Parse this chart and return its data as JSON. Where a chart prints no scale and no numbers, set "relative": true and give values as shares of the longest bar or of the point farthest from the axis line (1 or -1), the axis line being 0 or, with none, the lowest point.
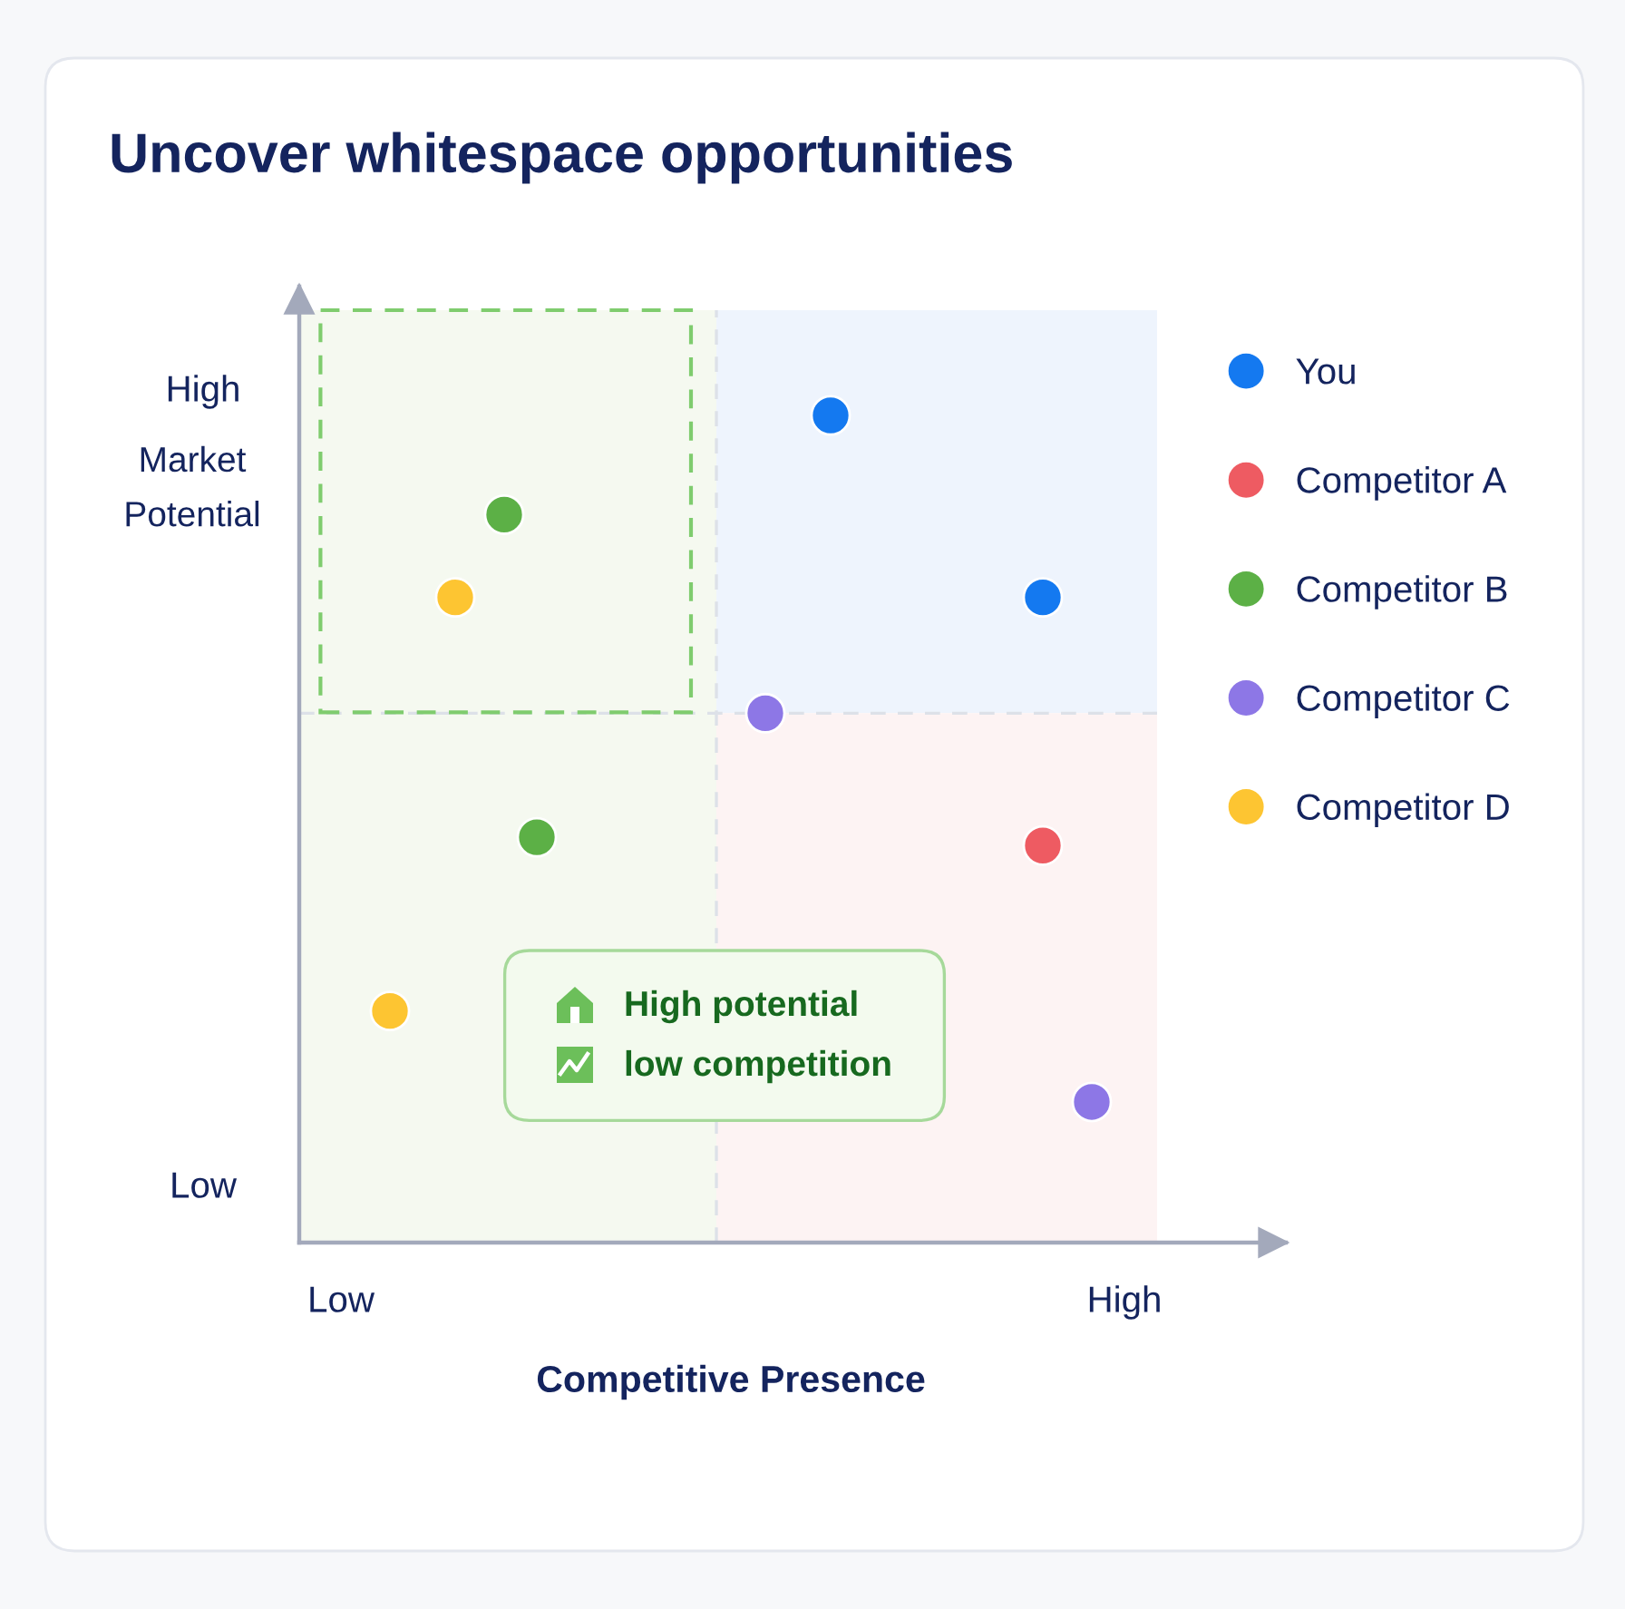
{
  "chart_data": {
    "type": "scatter",
    "relative": true,
    "title": "Uncover whitespace opportunities",
    "xlabel": "Competitive Presence",
    "ylabel": "Market Potential",
    "categories": [
      "Low",
      null,
      null,
      null,
      null,
      null,
      null,
      null,
      null,
      null,
      null,
      null,
      null,
      null,
      null,
      null,
      null,
      null,
      null,
      null,
      null,
      null,
      null,
      null,
      null,
      null,
      null,
      null,
      null,
      null,
      null,
      null,
      null,
      null,
      null,
      null,
      null,
      null,
      null,
      null,
      null,
      null,
      null,
      null,
      null,
      null,
      null,
      null,
      "High"
    ],
    "series": [
      {
        "name": "You",
        "color": "#1479f0",
        "values": [
          null,
          null,
          null,
          null,
          null,
          null,
          null,
          null,
          null,
          null,
          null,
          null,
          null,
          null,
          null,
          null,
          null,
          null,
          null,
          null,
          null,
          null,
          null,
          null,
          null,
          null,
          null,
          null,
          null,
          null,
          1.0,
          null,
          null,
          null,
          null,
          null,
          null,
          null,
          null,
          null,
          null,
          null,
          null,
          0.78,
          null,
          null,
          null,
          null,
          null
        ]
      },
      {
        "name": "Competitor A",
        "color": "#ee5b62",
        "values": [
          null,
          null,
          null,
          null,
          null,
          null,
          null,
          null,
          null,
          null,
          null,
          null,
          null,
          null,
          null,
          null,
          null,
          null,
          null,
          null,
          null,
          null,
          null,
          null,
          null,
          null,
          null,
          null,
          null,
          null,
          null,
          null,
          null,
          null,
          null,
          null,
          null,
          null,
          null,
          null,
          null,
          null,
          null,
          0.48,
          null,
          null,
          null,
          null,
          null
        ]
      },
      {
        "name": "Competitor B",
        "color": "#5cb046",
        "values": [
          null,
          null,
          null,
          null,
          null,
          null,
          null,
          null,
          null,
          null,
          0.88,
          null,
          0.49,
          null,
          null,
          null,
          null,
          null,
          null,
          null,
          null,
          null,
          null,
          null,
          null,
          null,
          null,
          null,
          null,
          null,
          null,
          null,
          null,
          null,
          null,
          null,
          null,
          null,
          null,
          null,
          null,
          null,
          null,
          null,
          null,
          null,
          null,
          null,
          null
        ]
      },
      {
        "name": "Competitor C",
        "color": "#8d77e6",
        "values": [
          null,
          null,
          null,
          null,
          null,
          null,
          null,
          null,
          null,
          null,
          null,
          null,
          null,
          null,
          null,
          null,
          null,
          null,
          null,
          null,
          null,
          null,
          null,
          null,
          null,
          null,
          0.64,
          null,
          null,
          null,
          null,
          null,
          null,
          null,
          null,
          null,
          null,
          null,
          null,
          null,
          null,
          null,
          null,
          null,
          null,
          null,
          0.17,
          null,
          null
        ]
      },
      {
        "name": "Competitor D",
        "color": "#fdc532",
        "values": [
          null,
          null,
          null,
          0.28,
          null,
          null,
          null,
          0.78,
          null,
          null,
          null,
          null,
          null,
          null,
          null,
          null,
          null,
          null,
          null,
          null,
          null,
          null,
          null,
          null,
          null,
          null,
          null,
          null,
          null,
          null,
          null,
          null,
          null,
          null,
          null,
          null,
          null,
          null,
          null,
          null,
          null,
          null,
          null,
          null,
          null,
          null,
          null,
          null,
          null
        ]
      }
    ],
    "ref_lines": [
      {
        "axis": "y",
        "value": 0.64,
        "color": "#dde1e8",
        "line_style": "dashed"
      }
    ],
    "annotations": [
      "High potential",
      "low competition",
      "High",
      "Low"
    ],
    "marker": "circle",
    "legend": "right"
  }
}
